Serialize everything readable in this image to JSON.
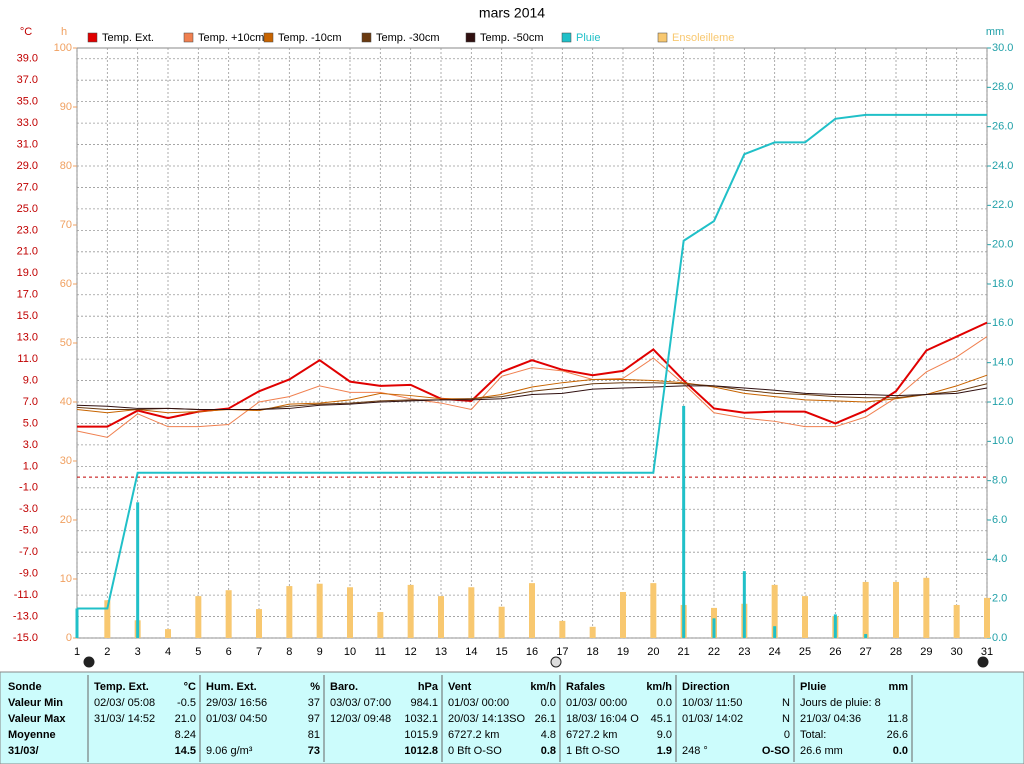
{
  "chart_data": {
    "type": "weather",
    "title": "mars 2014",
    "y_unit": "°C",
    "y2_unit": "mm",
    "y3_unit": "h",
    "x": [
      1,
      2,
      3,
      4,
      5,
      6,
      7,
      8,
      9,
      10,
      11,
      12,
      13,
      14,
      15,
      16,
      17,
      18,
      19,
      20,
      21,
      22,
      23,
      24,
      25,
      26,
      27,
      28,
      29,
      30,
      31
    ],
    "xlim": [
      1,
      31
    ],
    "ylim": [
      -15,
      40
    ],
    "yticks": [
      {
        "value": -15,
        "label": "-15.0"
      },
      {
        "value": -13,
        "label": "-13.0"
      },
      {
        "value": -11,
        "label": "-11.0"
      },
      {
        "value": -9,
        "label": "-9.0"
      },
      {
        "value": -7,
        "label": "-7.0"
      },
      {
        "value": -5,
        "label": "-5.0"
      },
      {
        "value": -3,
        "label": "-3.0"
      },
      {
        "value": -1,
        "label": "-1.0"
      },
      {
        "value": 1,
        "label": "1.0"
      },
      {
        "value": 3,
        "label": "3.0"
      },
      {
        "value": 5,
        "label": "5.0"
      },
      {
        "value": 7,
        "label": "7.0"
      },
      {
        "value": 9,
        "label": "9.0"
      },
      {
        "value": 11,
        "label": "11.0"
      },
      {
        "value": 13,
        "label": "13.0"
      },
      {
        "value": 15,
        "label": "15.0"
      },
      {
        "value": 17,
        "label": "17.0"
      },
      {
        "value": 19,
        "label": "19.0"
      },
      {
        "value": 21,
        "label": "21.0"
      },
      {
        "value": 23,
        "label": "23.0"
      },
      {
        "value": 25,
        "label": "25.0"
      },
      {
        "value": 27,
        "label": "27.0"
      },
      {
        "value": 29,
        "label": "29.0"
      },
      {
        "value": 31,
        "label": "31.0"
      },
      {
        "value": 33,
        "label": "33.0"
      },
      {
        "value": 35,
        "label": "35.0"
      },
      {
        "value": 37,
        "label": "37.0"
      },
      {
        "value": 39,
        "label": "39.0"
      }
    ],
    "y2lim": [
      0,
      30
    ],
    "y2ticks": [
      {
        "value": 0,
        "label": "0.0"
      },
      {
        "value": 2,
        "label": "2.0"
      },
      {
        "value": 4,
        "label": "4.0"
      },
      {
        "value": 6,
        "label": "6.0"
      },
      {
        "value": 8,
        "label": "8.0"
      },
      {
        "value": 10,
        "label": "10.0"
      },
      {
        "value": 12,
        "label": "12.0"
      },
      {
        "value": 14,
        "label": "14.0"
      },
      {
        "value": 16,
        "label": "16.0"
      },
      {
        "value": 18,
        "label": "18.0"
      },
      {
        "value": 20,
        "label": "20.0"
      },
      {
        "value": 22,
        "label": "22.0"
      },
      {
        "value": 24,
        "label": "24.0"
      },
      {
        "value": 26,
        "label": "26.0"
      },
      {
        "value": 28,
        "label": "28.0"
      },
      {
        "value": 30,
        "label": "30.0"
      }
    ],
    "y3lim": [
      0,
      100
    ],
    "y3ticks": [
      0,
      10,
      20,
      30,
      40,
      50,
      60,
      70,
      80,
      90,
      100
    ],
    "grid": true,
    "reference_line": 0,
    "series": [
      {
        "name": "Temp. Ext.",
        "color": "#e00000",
        "kind": "line",
        "axis": "y",
        "width": 2,
        "values": [
          4.7,
          4.7,
          6.2,
          5.5,
          6.1,
          6.4,
          8.0,
          9.1,
          10.9,
          8.9,
          8.5,
          8.6,
          7.3,
          7.1,
          9.8,
          10.9,
          10.0,
          9.5,
          9.9,
          11.9,
          9.0,
          6.4,
          6.0,
          6.1,
          6.1,
          5.0,
          6.2,
          8.0,
          11.8,
          13.1,
          14.4
        ]
      },
      {
        "name": "Temp. +10cm",
        "color": "#f08050",
        "kind": "line",
        "axis": "y",
        "width": 1,
        "values": [
          4.3,
          3.7,
          5.9,
          4.7,
          4.7,
          4.9,
          7.0,
          7.5,
          8.5,
          7.9,
          7.9,
          7.3,
          6.9,
          6.3,
          9.4,
          10.2,
          9.9,
          9.1,
          9.2,
          11.1,
          8.7,
          6.0,
          5.5,
          5.2,
          4.7,
          4.7,
          5.6,
          7.4,
          9.8,
          11.2,
          13.1
        ]
      },
      {
        "name": "Temp. -10cm",
        "color": "#c86400",
        "kind": "line",
        "axis": "y",
        "width": 1,
        "values": [
          6.3,
          6.0,
          6.3,
          6.0,
          6.1,
          6.3,
          6.2,
          6.8,
          6.9,
          7.2,
          7.8,
          7.6,
          7.3,
          7.3,
          7.7,
          8.4,
          8.8,
          9.1,
          9.1,
          9.0,
          8.8,
          8.4,
          7.8,
          7.5,
          7.2,
          7.1,
          7.0,
          7.3,
          7.7,
          8.5,
          9.5
        ]
      },
      {
        "name": "Temp. -30cm",
        "color": "#6a3a10",
        "kind": "line",
        "axis": "y",
        "width": 1,
        "values": [
          6.5,
          6.3,
          6.3,
          6.4,
          6.3,
          6.3,
          6.3,
          6.6,
          6.8,
          6.9,
          7.1,
          7.2,
          7.2,
          7.3,
          7.5,
          8.0,
          8.3,
          8.7,
          8.8,
          8.8,
          8.7,
          8.5,
          8.1,
          7.8,
          7.7,
          7.5,
          7.4,
          7.4,
          7.7,
          8.0,
          8.7
        ]
      },
      {
        "name": "Temp. -50cm",
        "color": "#301010",
        "kind": "line",
        "axis": "y",
        "width": 1,
        "values": [
          6.7,
          6.6,
          6.4,
          6.4,
          6.3,
          6.3,
          6.3,
          6.4,
          6.7,
          6.8,
          7.0,
          7.1,
          7.2,
          7.2,
          7.3,
          7.7,
          7.8,
          8.2,
          8.3,
          8.4,
          8.5,
          8.5,
          8.3,
          8.1,
          7.8,
          7.7,
          7.7,
          7.6,
          7.7,
          7.8,
          8.3
        ]
      },
      {
        "name": "Pluie",
        "color": "#20c0c8",
        "kind": "line",
        "axis": "y2",
        "width": 2,
        "values": [
          1.5,
          1.5,
          8.4,
          8.4,
          8.4,
          8.4,
          8.4,
          8.4,
          8.4,
          8.4,
          8.4,
          8.4,
          8.4,
          8.4,
          8.4,
          8.4,
          8.4,
          8.4,
          8.4,
          8.4,
          20.2,
          21.2,
          24.6,
          25.2,
          25.2,
          26.4,
          26.6,
          26.6,
          26.6,
          26.6,
          26.6
        ],
        "daily": [
          1.5,
          0,
          6.9,
          0,
          0,
          0,
          0,
          0,
          0,
          0,
          0,
          0,
          0,
          0,
          0,
          0,
          0,
          0,
          0,
          0,
          11.8,
          1.0,
          3.4,
          0.6,
          0,
          1.2,
          0.2,
          0,
          0,
          0,
          0
        ]
      },
      {
        "name": "Ensoleilleme",
        "color": "#f8c870",
        "kind": "bar",
        "axis": "y3",
        "values": [
          0,
          6.4,
          3.0,
          1.5,
          7.1,
          8.1,
          4.9,
          8.8,
          9.2,
          8.6,
          4.4,
          9.0,
          7.1,
          8.6,
          5.3,
          9.3,
          2.9,
          1.9,
          7.8,
          9.3,
          5.6,
          5.1,
          5.8,
          9.0,
          7.1,
          3.7,
          9.5,
          9.5,
          10.2,
          5.6,
          6.8
        ]
      }
    ]
  },
  "table": {
    "row_labels": [
      "Sonde",
      "Valeur Min",
      "Valeur Max",
      "Moyenne",
      "31/03/"
    ],
    "columns": [
      {
        "header": "Temp. Ext.",
        "unit": "°C",
        "cells": [
          {
            "left": "02/03/  05:08",
            "right": "-0.5"
          },
          {
            "left": "31/03/  14:52",
            "right": "21.0"
          },
          {
            "right": "8.24"
          },
          {
            "right": "14.5"
          }
        ]
      },
      {
        "header": "Hum. Ext.",
        "unit": "%",
        "cells": [
          {
            "left": "29/03/  16:56",
            "right": "37"
          },
          {
            "left": "01/03/  04:50",
            "right": "97"
          },
          {
            "right": "81"
          },
          {
            "left": "9.06 g/m³",
            "right": "73"
          }
        ]
      },
      {
        "header": "Baro.",
        "unit": "hPa",
        "cells": [
          {
            "left": "03/03/  07:00",
            "right": "984.1"
          },
          {
            "left": "12/03/  09:48",
            "right": "1032.1"
          },
          {
            "right": "1015.9"
          },
          {
            "right": "1012.8"
          }
        ]
      },
      {
        "header": "Vent",
        "unit": "km/h",
        "cells": [
          {
            "left": "01/03/  00:00",
            "right": "0.0"
          },
          {
            "left": "20/03/  14:13SO",
            "right": "26.1"
          },
          {
            "left": "6727.2 km",
            "right": "4.8"
          },
          {
            "left": "0 Bft O-SO",
            "right": "0.8"
          }
        ]
      },
      {
        "header": "Rafales",
        "unit": "km/h",
        "cells": [
          {
            "left": "01/03/  00:00",
            "right": "0.0"
          },
          {
            "left": "18/03/  16:04  O",
            "right": "45.1"
          },
          {
            "left": "6727.2 km",
            "right": "9.0"
          },
          {
            "left": "1 Bft O-SO",
            "right": "1.9"
          }
        ]
      },
      {
        "header": "Direction",
        "cells": [
          {
            "left": "10/03/  11:50",
            "right": "N"
          },
          {
            "left": "01/03/  14:02",
            "right": "N"
          },
          {
            "right": "0"
          },
          {
            "left": "248 °",
            "right": "O-SO"
          }
        ]
      },
      {
        "header": "Pluie",
        "unit": "mm",
        "cells": [
          {
            "left": "Jours de pluie: 8"
          },
          {
            "left": "21/03/  04:36",
            "right": "11.8"
          },
          {
            "left": "Total:",
            "right": "26.6"
          },
          {
            "left": "26.6 mm",
            "right": "0.0"
          }
        ]
      }
    ]
  }
}
